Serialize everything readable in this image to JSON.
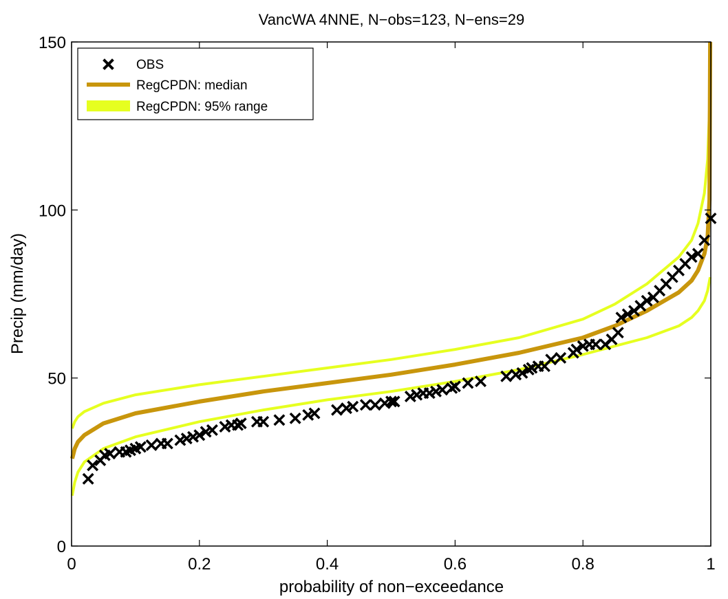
{
  "chart_data": {
    "type": "line",
    "title": "VancWA 4NNE, N−obs=123, N−ens=29",
    "xlabel": "probability of non−exceedance",
    "ylabel": "Precip (mm/day)",
    "xlim": [
      0,
      1
    ],
    "ylim": [
      0,
      150
    ],
    "xticks": [
      0,
      0.2,
      0.4,
      0.6,
      0.8,
      1
    ],
    "xtick_labels": [
      "0",
      "0.2",
      "0.4",
      "0.6",
      "0.8",
      "1"
    ],
    "yticks": [
      0,
      50,
      100,
      150
    ],
    "ytick_labels": [
      "0",
      "50",
      "100",
      "150"
    ],
    "grid": false,
    "legend_position": "top-left",
    "legend": [
      {
        "label": "OBS",
        "marker": "x",
        "color": "#000000"
      },
      {
        "label": "RegCPDN: median",
        "color": "#c8960c"
      },
      {
        "label": "RegCPDN: 95% range",
        "color": "#e6ff20"
      }
    ],
    "series": [
      {
        "name": "RegCPDN: median",
        "color": "#c8960c",
        "x": [
          0.001,
          0.005,
          0.01,
          0.02,
          0.05,
          0.1,
          0.2,
          0.3,
          0.4,
          0.5,
          0.6,
          0.7,
          0.8,
          0.85,
          0.9,
          0.95,
          0.97,
          0.98,
          0.99,
          0.995,
          0.998,
          0.999
        ],
        "y": [
          26,
          29,
          31,
          33,
          36.5,
          39.5,
          43,
          46,
          48.5,
          51,
          54,
          57.5,
          62,
          65.5,
          70,
          75.5,
          79,
          82,
          87,
          92,
          103,
          150
        ]
      },
      {
        "name": "RegCPDN: 95% range (upper)",
        "color": "#e6ff20",
        "x": [
          0.001,
          0.005,
          0.01,
          0.02,
          0.05,
          0.1,
          0.2,
          0.3,
          0.4,
          0.5,
          0.6,
          0.7,
          0.8,
          0.85,
          0.9,
          0.95,
          0.97,
          0.98,
          0.99,
          0.995,
          0.998,
          0.999
        ],
        "y": [
          35,
          37,
          38.5,
          40,
          42.5,
          45,
          48,
          50.5,
          53,
          55.5,
          58.5,
          62,
          67.5,
          72,
          78,
          86,
          91,
          96,
          105,
          115,
          130,
          150
        ]
      },
      {
        "name": "RegCPDN: 95% range (lower)",
        "color": "#e6ff20",
        "x": [
          0.001,
          0.005,
          0.01,
          0.02,
          0.05,
          0.1,
          0.2,
          0.3,
          0.4,
          0.5,
          0.6,
          0.7,
          0.8,
          0.85,
          0.9,
          0.95,
          0.97,
          0.98,
          0.99,
          0.995,
          0.998,
          0.999
        ],
        "y": [
          15,
          19,
          22,
          25,
          29,
          32.5,
          37,
          40.5,
          43.5,
          46,
          49,
          52.5,
          57,
          59.5,
          62,
          65.5,
          68,
          70,
          73,
          76,
          79,
          80
        ]
      },
      {
        "name": "OBS",
        "color": "#000000",
        "marker": "x",
        "x": [
          0.026,
          0.033,
          0.045,
          0.052,
          0.06,
          0.075,
          0.085,
          0.092,
          0.1,
          0.108,
          0.125,
          0.14,
          0.15,
          0.17,
          0.18,
          0.19,
          0.2,
          0.21,
          0.22,
          0.24,
          0.25,
          0.26,
          0.265,
          0.29,
          0.3,
          0.325,
          0.35,
          0.37,
          0.38,
          0.415,
          0.43,
          0.44,
          0.46,
          0.475,
          0.49,
          0.5,
          0.505,
          0.53,
          0.54,
          0.55,
          0.56,
          0.57,
          0.58,
          0.595,
          0.6,
          0.62,
          0.64,
          0.68,
          0.695,
          0.705,
          0.715,
          0.72,
          0.73,
          0.74,
          0.75,
          0.765,
          0.785,
          0.79,
          0.8,
          0.81,
          0.82,
          0.835,
          0.845,
          0.855,
          0.86,
          0.87,
          0.88,
          0.89,
          0.9,
          0.91,
          0.92,
          0.93,
          0.94,
          0.95,
          0.96,
          0.97,
          0.98,
          0.99,
          1.0
        ],
        "y": [
          20,
          24,
          25.5,
          27,
          27.5,
          28,
          28,
          28.5,
          29,
          29.5,
          30,
          30.5,
          30.5,
          31.5,
          32,
          32.5,
          33,
          34,
          34.5,
          35.5,
          36,
          36,
          36.5,
          37,
          37,
          37.5,
          38,
          39,
          39.5,
          40.5,
          41,
          41.5,
          42,
          42,
          42.5,
          43,
          43,
          44.5,
          45,
          45.5,
          45.5,
          46,
          46.5,
          47,
          47.5,
          48.5,
          49,
          50.5,
          51,
          51.5,
          52.5,
          53,
          53.5,
          53.5,
          55.5,
          56,
          57.5,
          58.5,
          59.5,
          60,
          60,
          60,
          61.5,
          63.5,
          68,
          69,
          70,
          71.5,
          73,
          74,
          76,
          78,
          80,
          82,
          84,
          86,
          87,
          91,
          97.5
        ]
      }
    ]
  }
}
